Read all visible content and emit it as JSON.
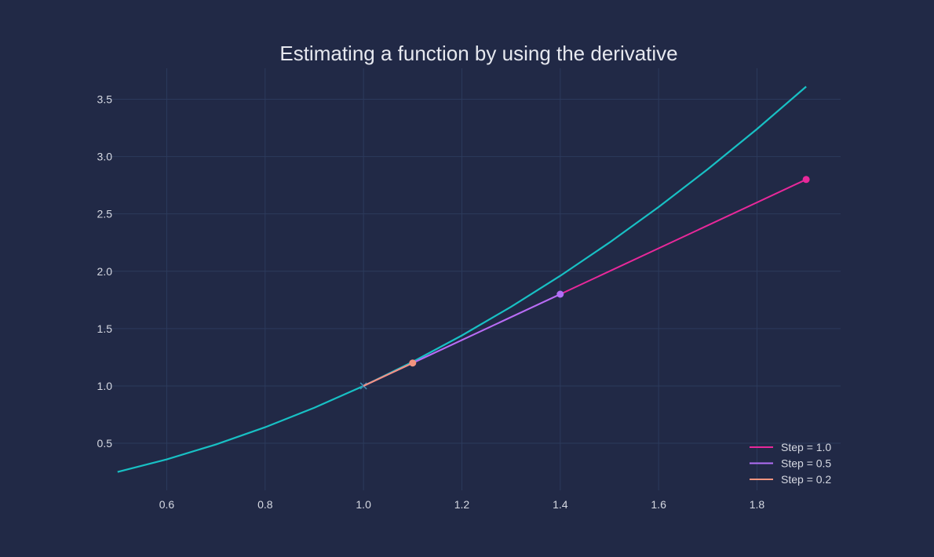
{
  "chart_data": {
    "type": "line",
    "title": "Estimating a function by using the derivative",
    "xlabel": "",
    "ylabel": "",
    "xlim": [
      0.47,
      1.97
    ],
    "ylim": [
      0.09,
      3.77
    ],
    "grid": true,
    "legend_position": "bottom-right",
    "x_ticks": [
      0.6,
      0.8,
      1.0,
      1.2,
      1.4,
      1.6,
      1.8
    ],
    "x_tick_labels": [
      "0.6",
      "0.8",
      "1.0",
      "1.2",
      "1.4",
      "1.6",
      "1.8"
    ],
    "y_ticks": [
      0.5,
      1.0,
      1.5,
      2.0,
      2.5,
      3.0,
      3.5
    ],
    "y_tick_labels": [
      "0.5",
      "1.0",
      "1.5",
      "2.0",
      "2.5",
      "3.0",
      "3.5"
    ],
    "curve": {
      "color": "#18c0c4",
      "x": [
        0.5,
        0.6,
        0.7,
        0.8,
        0.9,
        1.0,
        1.1,
        1.2,
        1.3,
        1.4,
        1.5,
        1.6,
        1.7,
        1.8,
        1.9
      ],
      "y": [
        0.25,
        0.36,
        0.49,
        0.64,
        0.81,
        1.0,
        1.21,
        1.44,
        1.69,
        1.96,
        2.25,
        2.56,
        2.89,
        3.24,
        3.61
      ]
    },
    "start_point": {
      "x": 1.0,
      "y": 1.0,
      "marker": "x"
    },
    "series": [
      {
        "name": "Step = 1.0",
        "color": "#e8289a",
        "x": [
          1.0,
          1.9
        ],
        "y": [
          1.0,
          2.8
        ]
      },
      {
        "name": "Step = 0.5",
        "color": "#b26ff7",
        "x": [
          1.0,
          1.4
        ],
        "y": [
          1.0,
          1.8
        ]
      },
      {
        "name": "Step = 0.2",
        "color": "#f2947f",
        "x": [
          1.0,
          1.1
        ],
        "y": [
          1.0,
          1.2
        ]
      }
    ]
  }
}
